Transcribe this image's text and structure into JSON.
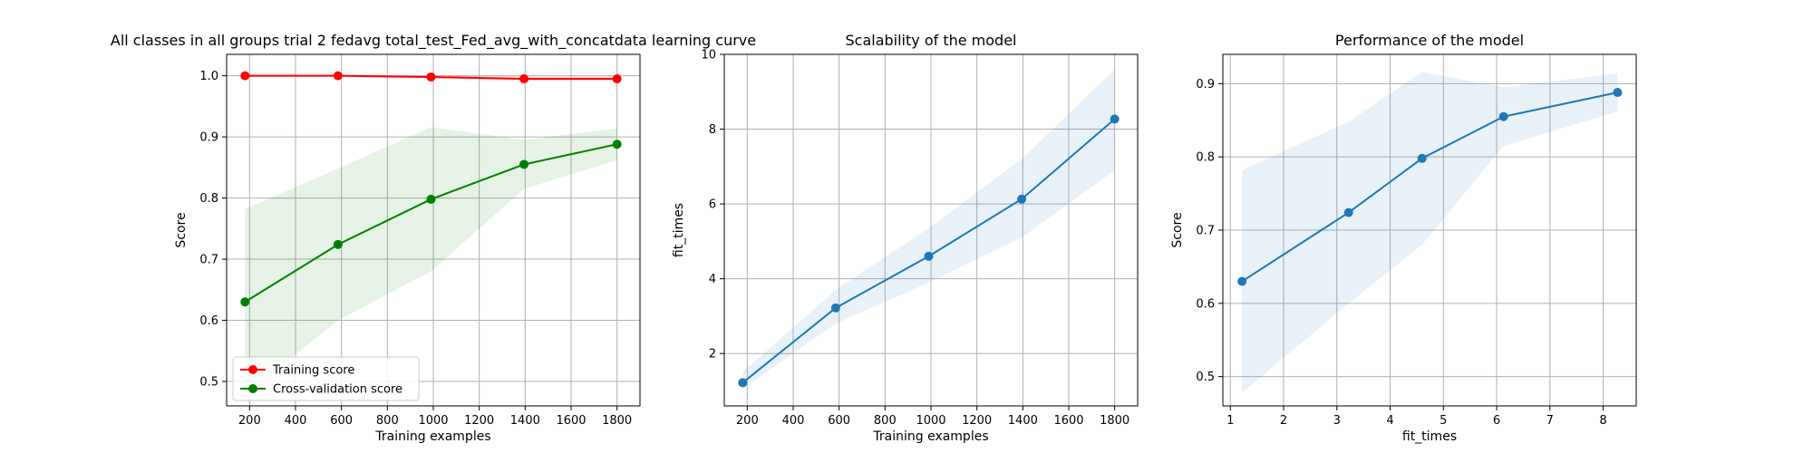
{
  "chart_data": [
    {
      "type": "line",
      "title": "All classes in all groups trial 2 fedavg total_test_Fed_avg_with_concatdata learning curve",
      "xlabel": "Training examples",
      "ylabel": "Score",
      "xlim": [
        100,
        1900
      ],
      "ylim": [
        0.46,
        1.035
      ],
      "xticks": [
        200,
        400,
        600,
        800,
        1000,
        1200,
        1400,
        1600,
        1800
      ],
      "xtick_labels": [
        "200",
        "400",
        "600",
        "800",
        "1000",
        "1200",
        "1400",
        "1600",
        "1800"
      ],
      "yticks": [
        0.5,
        0.6,
        0.7,
        0.8,
        0.9,
        1.0
      ],
      "ytick_labels": [
        "0.5",
        "0.6",
        "0.7",
        "0.8",
        "0.9",
        "1.0"
      ],
      "grid": true,
      "legend_position": "lower-left",
      "series": [
        {
          "name": "Training score",
          "color": "#ff0000",
          "x": [
            180,
            585,
            990,
            1395,
            1800
          ],
          "y": [
            1.0,
            1.0,
            0.998,
            0.995,
            0.995
          ],
          "band_lower": [
            0.998,
            0.998,
            0.995,
            0.991,
            0.991
          ],
          "band_upper": [
            1.002,
            1.002,
            1.001,
            0.999,
            0.999
          ]
        },
        {
          "name": "Cross-validation score",
          "color": "#008000",
          "x": [
            180,
            585,
            990,
            1395,
            1800
          ],
          "y": [
            0.63,
            0.724,
            0.798,
            0.855,
            0.888
          ],
          "band_lower": [
            0.478,
            0.6,
            0.68,
            0.815,
            0.862
          ],
          "band_upper": [
            0.782,
            0.848,
            0.916,
            0.895,
            0.914
          ]
        }
      ]
    },
    {
      "type": "line",
      "title": "Scalability of the model",
      "xlabel": "Training examples",
      "ylabel": "fit_times",
      "xlim": [
        100,
        1900
      ],
      "ylim": [
        0.6,
        10.0
      ],
      "xticks": [
        200,
        400,
        600,
        800,
        1000,
        1200,
        1400,
        1600,
        1800
      ],
      "xtick_labels": [
        "200",
        "400",
        "600",
        "800",
        "1000",
        "1200",
        "1400",
        "1600",
        "1800"
      ],
      "yticks": [
        2,
        4,
        6,
        8,
        10
      ],
      "ytick_labels": [
        "2",
        "4",
        "6",
        "8",
        "10"
      ],
      "grid": true,
      "series": [
        {
          "color": "#1f77b4",
          "x": [
            180,
            585,
            990,
            1395,
            1800
          ],
          "y": [
            1.22,
            3.22,
            4.6,
            6.13,
            8.27
          ],
          "band_lower": [
            1.05,
            2.8,
            3.9,
            5.1,
            6.9
          ],
          "band_upper": [
            1.5,
            3.7,
            5.35,
            7.2,
            9.6
          ]
        }
      ]
    },
    {
      "type": "line",
      "title": "Performance of the model",
      "xlabel": "fit_times",
      "ylabel": "Score",
      "xlim": [
        0.86,
        8.62
      ],
      "ylim": [
        0.46,
        0.94
      ],
      "xticks": [
        1,
        2,
        3,
        4,
        5,
        6,
        7,
        8
      ],
      "xtick_labels": [
        "1",
        "2",
        "3",
        "4",
        "5",
        "6",
        "7",
        "8"
      ],
      "yticks": [
        0.5,
        0.6,
        0.7,
        0.8,
        0.9
      ],
      "ytick_labels": [
        "0.5",
        "0.6",
        "0.7",
        "0.8",
        "0.9"
      ],
      "grid": true,
      "series": [
        {
          "color": "#1f77b4",
          "x": [
            1.22,
            3.22,
            4.6,
            6.13,
            8.27
          ],
          "y": [
            0.63,
            0.724,
            0.798,
            0.855,
            0.888
          ],
          "band_lower": [
            0.478,
            0.6,
            0.68,
            0.815,
            0.862
          ],
          "band_upper": [
            0.782,
            0.848,
            0.916,
            0.895,
            0.914
          ]
        }
      ]
    }
  ]
}
